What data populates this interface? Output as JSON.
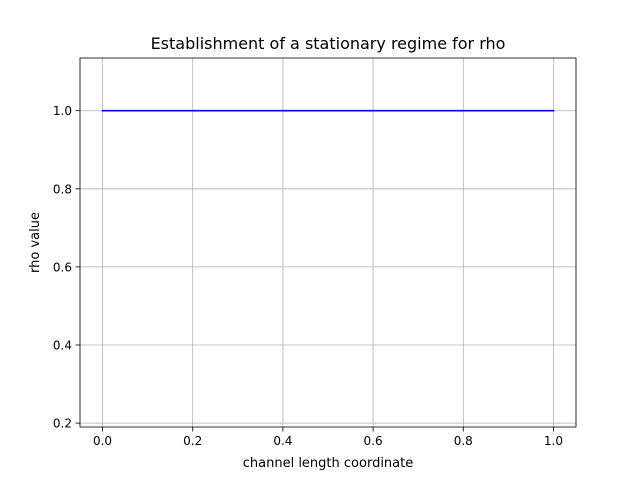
{
  "chart_data": {
    "type": "line",
    "title": "Establishment of a stationary regime for rho",
    "xlabel": "channel length coordinate",
    "ylabel": "rho value",
    "xlim": [
      -0.05,
      1.05
    ],
    "ylim": [
      0.19,
      1.135
    ],
    "xticks": [
      0.0,
      0.2,
      0.4,
      0.6,
      0.8,
      1.0
    ],
    "xtick_labels": [
      "0.0",
      "0.2",
      "0.4",
      "0.6",
      "0.8",
      "1.0"
    ],
    "yticks": [
      0.2,
      0.4,
      0.6,
      0.8,
      1.0
    ],
    "ytick_labels": [
      "0.2",
      "0.4",
      "0.6",
      "0.8",
      "1.0"
    ],
    "grid": true,
    "legend": "none",
    "series": [
      {
        "color": "#0000ff",
        "x": [
          0.0,
          0.1,
          0.2,
          0.3,
          0.4,
          0.5,
          0.6,
          0.7,
          0.8,
          0.9,
          1.0
        ],
        "y": [
          1.0,
          1.0,
          1.0,
          1.0,
          1.0,
          1.0,
          1.0,
          1.0,
          1.0,
          1.0,
          1.0
        ]
      }
    ]
  }
}
